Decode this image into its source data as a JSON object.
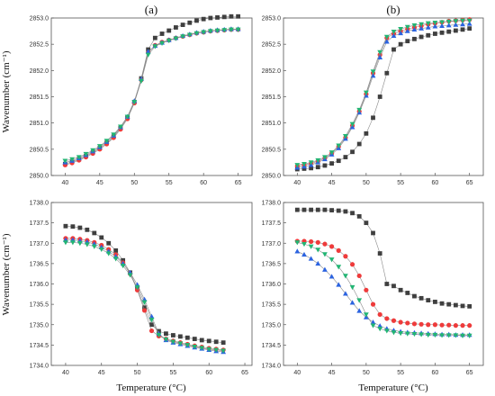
{
  "figure": {
    "panel_labels": [
      "(a)",
      "(b)"
    ],
    "ylabel": "Wavenumber (cm⁻¹)",
    "xlabel": "Temperature (°C)"
  },
  "chart_data": [
    {
      "type": "scatter",
      "panel": "(a) top",
      "xlim": [
        38,
        67
      ],
      "ylim": [
        2850.0,
        2853.0
      ],
      "xticks": [
        40,
        45,
        50,
        55,
        60,
        65
      ],
      "yticks": [
        2850.0,
        2850.5,
        2851.0,
        2851.5,
        2852.0,
        2852.5,
        2853.0
      ],
      "x": [
        40,
        41,
        42,
        43,
        44,
        45,
        46,
        47,
        48,
        49,
        50,
        51,
        52,
        53,
        54,
        55,
        56,
        57,
        58,
        59,
        60,
        61,
        62,
        63,
        64,
        65
      ],
      "series": [
        {
          "color": "#3f3f3f",
          "marker": "square",
          "values": [
            2850.22,
            2850.26,
            2850.31,
            2850.37,
            2850.44,
            2850.52,
            2850.62,
            2850.74,
            2850.9,
            2851.1,
            2851.4,
            2851.85,
            2852.4,
            2852.62,
            2852.7,
            2852.76,
            2852.82,
            2852.87,
            2852.91,
            2852.95,
            2852.98,
            2853.0,
            2853.01,
            2853.02,
            2853.03,
            2853.03
          ]
        },
        {
          "color": "#ee3b3b",
          "marker": "circle",
          "values": [
            2850.2,
            2850.24,
            2850.29,
            2850.35,
            2850.42,
            2850.5,
            2850.6,
            2850.72,
            2850.88,
            2851.08,
            2851.38,
            2851.82,
            2852.34,
            2852.48,
            2852.54,
            2852.58,
            2852.62,
            2852.65,
            2852.68,
            2852.71,
            2852.73,
            2852.75,
            2852.76,
            2852.77,
            2852.78,
            2852.78
          ]
        },
        {
          "color": "#2b63e0",
          "marker": "triangle-up",
          "values": [
            2850.25,
            2850.28,
            2850.33,
            2850.39,
            2850.46,
            2850.54,
            2850.64,
            2850.76,
            2850.92,
            2851.12,
            2851.42,
            2851.84,
            2852.36,
            2852.47,
            2852.53,
            2852.58,
            2852.62,
            2852.66,
            2852.69,
            2852.72,
            2852.74,
            2852.76,
            2852.77,
            2852.78,
            2852.79,
            2852.79
          ]
        },
        {
          "color": "#22b573",
          "marker": "triangle-down",
          "values": [
            2850.28,
            2850.31,
            2850.35,
            2850.41,
            2850.48,
            2850.56,
            2850.66,
            2850.78,
            2850.93,
            2851.12,
            2851.4,
            2851.8,
            2852.3,
            2852.46,
            2852.52,
            2852.57,
            2852.61,
            2852.65,
            2852.68,
            2852.71,
            2852.73,
            2852.75,
            2852.76,
            2852.77,
            2852.78,
            2852.78
          ]
        }
      ]
    },
    {
      "type": "scatter",
      "panel": "(b) top",
      "xlim": [
        38,
        67
      ],
      "ylim": [
        2850.0,
        2853.0
      ],
      "xticks": [
        40,
        45,
        50,
        55,
        60,
        65
      ],
      "yticks": [
        2850.0,
        2850.5,
        2851.0,
        2851.5,
        2852.0,
        2852.5,
        2853.0
      ],
      "x": [
        40,
        41,
        42,
        43,
        44,
        45,
        46,
        47,
        48,
        49,
        50,
        51,
        52,
        53,
        54,
        55,
        56,
        57,
        58,
        59,
        60,
        61,
        62,
        63,
        64,
        65
      ],
      "series": [
        {
          "color": "#3f3f3f",
          "marker": "square",
          "values": [
            2850.12,
            2850.13,
            2850.14,
            2850.16,
            2850.19,
            2850.23,
            2850.28,
            2850.35,
            2850.45,
            2850.6,
            2850.8,
            2851.1,
            2851.5,
            2851.95,
            2852.4,
            2852.5,
            2852.56,
            2852.6,
            2852.64,
            2852.67,
            2852.7,
            2852.72,
            2852.74,
            2852.76,
            2852.78,
            2852.8
          ]
        },
        {
          "color": "#ee3b3b",
          "marker": "circle",
          "values": [
            2850.18,
            2850.2,
            2850.23,
            2850.27,
            2850.33,
            2850.42,
            2850.55,
            2850.72,
            2850.95,
            2851.22,
            2851.55,
            2851.95,
            2852.3,
            2852.62,
            2852.7,
            2852.75,
            2852.79,
            2852.82,
            2852.85,
            2852.88,
            2852.9,
            2852.92,
            2852.94,
            2852.95,
            2852.96,
            2852.97
          ]
        },
        {
          "color": "#2b63e0",
          "marker": "triangle-up",
          "values": [
            2850.15,
            2850.17,
            2850.2,
            2850.25,
            2850.31,
            2850.4,
            2850.52,
            2850.7,
            2850.92,
            2851.2,
            2851.52,
            2851.9,
            2852.25,
            2852.55,
            2852.66,
            2852.71,
            2852.75,
            2852.78,
            2852.8,
            2852.82,
            2852.84,
            2852.85,
            2852.86,
            2852.87,
            2852.88,
            2852.89
          ]
        },
        {
          "color": "#22b573",
          "marker": "triangle-down",
          "values": [
            2850.2,
            2850.22,
            2850.25,
            2850.29,
            2850.35,
            2850.44,
            2850.57,
            2850.75,
            2850.98,
            2851.25,
            2851.58,
            2851.98,
            2852.35,
            2852.64,
            2852.74,
            2852.79,
            2852.83,
            2852.86,
            2852.88,
            2852.9,
            2852.91,
            2852.92,
            2852.93,
            2852.94,
            2852.95,
            2852.95
          ]
        }
      ]
    },
    {
      "type": "scatter",
      "panel": "(a) bottom",
      "xlim": [
        38,
        66
      ],
      "ylim": [
        1734.0,
        1738.0
      ],
      "xticks": [
        40,
        45,
        50,
        55,
        60,
        65
      ],
      "yticks": [
        1734.0,
        1734.5,
        1735.0,
        1735.5,
        1736.0,
        1736.5,
        1737.0,
        1737.5,
        1738.0
      ],
      "x": [
        40,
        41,
        42,
        43,
        44,
        45,
        46,
        47,
        48,
        49,
        50,
        51,
        52,
        53,
        54,
        55,
        56,
        57,
        58,
        59,
        60,
        61,
        62
      ],
      "series": [
        {
          "color": "#3f3f3f",
          "marker": "square",
          "values": [
            1737.42,
            1737.41,
            1737.38,
            1737.33,
            1737.25,
            1737.14,
            1737.0,
            1736.82,
            1736.58,
            1736.28,
            1735.88,
            1735.42,
            1735.0,
            1734.84,
            1734.78,
            1734.74,
            1734.71,
            1734.68,
            1734.65,
            1734.62,
            1734.6,
            1734.58,
            1734.56
          ]
        },
        {
          "color": "#ee3b3b",
          "marker": "circle",
          "values": [
            1737.12,
            1737.12,
            1737.1,
            1737.07,
            1737.02,
            1736.95,
            1736.85,
            1736.72,
            1736.52,
            1736.25,
            1735.85,
            1735.35,
            1734.85,
            1734.72,
            1734.65,
            1734.6,
            1734.56,
            1734.52,
            1734.48,
            1734.45,
            1734.42,
            1734.4,
            1734.38
          ]
        },
        {
          "color": "#2b63e0",
          "marker": "triangle-up",
          "values": [
            1737.08,
            1737.08,
            1737.06,
            1737.03,
            1736.98,
            1736.9,
            1736.8,
            1736.67,
            1736.5,
            1736.28,
            1735.98,
            1735.62,
            1735.2,
            1734.78,
            1734.62,
            1734.56,
            1734.52,
            1734.48,
            1734.44,
            1734.41,
            1734.38,
            1734.35,
            1734.33
          ]
        },
        {
          "color": "#22b573",
          "marker": "triangle-down",
          "values": [
            1737.02,
            1737.02,
            1737.0,
            1736.97,
            1736.92,
            1736.85,
            1736.75,
            1736.62,
            1736.45,
            1736.22,
            1735.92,
            1735.55,
            1735.12,
            1734.75,
            1734.64,
            1734.58,
            1734.54,
            1734.5,
            1734.46,
            1734.43,
            1734.4,
            1734.38,
            1734.36
          ]
        }
      ]
    },
    {
      "type": "scatter",
      "panel": "(b) bottom",
      "xlim": [
        38,
        67
      ],
      "ylim": [
        1734.0,
        1738.0
      ],
      "xticks": [
        40,
        45,
        50,
        55,
        60,
        65
      ],
      "yticks": [
        1734.0,
        1734.5,
        1735.0,
        1735.5,
        1736.0,
        1736.5,
        1737.0,
        1737.5,
        1738.0
      ],
      "x": [
        40,
        41,
        42,
        43,
        44,
        45,
        46,
        47,
        48,
        49,
        50,
        51,
        52,
        53,
        54,
        55,
        56,
        57,
        58,
        59,
        60,
        61,
        62,
        63,
        64,
        65
      ],
      "series": [
        {
          "color": "#3f3f3f",
          "marker": "square",
          "values": [
            1737.82,
            1737.82,
            1737.82,
            1737.82,
            1737.82,
            1737.81,
            1737.8,
            1737.78,
            1737.74,
            1737.66,
            1737.5,
            1737.25,
            1736.75,
            1736.0,
            1735.95,
            1735.85,
            1735.78,
            1735.7,
            1735.65,
            1735.6,
            1735.56,
            1735.52,
            1735.5,
            1735.48,
            1735.46,
            1735.45
          ]
        },
        {
          "color": "#ee3b3b",
          "marker": "circle",
          "values": [
            1737.05,
            1737.05,
            1737.04,
            1737.02,
            1736.98,
            1736.92,
            1736.82,
            1736.68,
            1736.48,
            1736.2,
            1735.85,
            1735.5,
            1735.25,
            1735.15,
            1735.1,
            1735.06,
            1735.04,
            1735.02,
            1735.01,
            1735.0,
            1735.0,
            1734.99,
            1734.99,
            1734.98,
            1734.98,
            1734.98
          ]
        },
        {
          "color": "#2b63e0",
          "marker": "triangle-up",
          "values": [
            1736.8,
            1736.72,
            1736.62,
            1736.5,
            1736.35,
            1736.18,
            1735.98,
            1735.76,
            1735.54,
            1735.34,
            1735.18,
            1735.06,
            1734.97,
            1734.9,
            1734.86,
            1734.83,
            1734.81,
            1734.8,
            1734.79,
            1734.78,
            1734.77,
            1734.76,
            1734.76,
            1734.75,
            1734.75,
            1734.75
          ]
        },
        {
          "color": "#22b573",
          "marker": "triangle-down",
          "values": [
            1737.02,
            1736.98,
            1736.92,
            1736.84,
            1736.73,
            1736.6,
            1736.42,
            1736.2,
            1735.92,
            1735.6,
            1735.25,
            1734.98,
            1734.9,
            1734.85,
            1734.81,
            1734.79,
            1734.78,
            1734.77,
            1734.76,
            1734.75,
            1734.75,
            1734.74,
            1734.74,
            1734.74,
            1734.73,
            1734.73
          ]
        }
      ]
    }
  ]
}
